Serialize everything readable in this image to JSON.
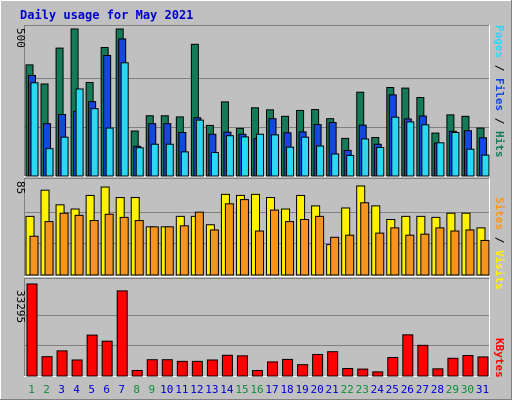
{
  "colors": {
    "hits": "#157b57",
    "files": "#1447dd",
    "pages": "#2ad8f4",
    "visits": "#fff200",
    "sites": "#f7941d",
    "kbytes": "#ff0000",
    "title": "#0000cc",
    "weekend_label": "#0b8f3a",
    "weekday_label": "#0000cc"
  },
  "chart_data": [
    {
      "type": "bar",
      "title": "Daily usage for May 2021",
      "ylabel": "Pages / Files / Hits",
      "ymax_label": "500",
      "categories": [
        "1",
        "2",
        "3",
        "4",
        "5",
        "6",
        "7",
        "8",
        "9",
        "10",
        "11",
        "12",
        "13",
        "14",
        "15",
        "16",
        "17",
        "18",
        "19",
        "20",
        "21",
        "22",
        "23",
        "24",
        "25",
        "26",
        "27",
        "28",
        "29",
        "30",
        "31"
      ],
      "weekend_days": [
        "1",
        "2",
        "8",
        "9",
        "15",
        "16",
        "22",
        "23",
        "29",
        "30"
      ],
      "ylim": [
        0,
        500
      ],
      "series": [
        {
          "name": "Hits",
          "values": [
            378,
            313,
            435,
            500,
            318,
            437,
            500,
            153,
            205,
            205,
            201,
            448,
            172,
            252,
            162,
            232,
            225,
            203,
            223,
            226,
            195,
            128,
            285,
            131,
            301,
            299,
            267,
            146,
            208,
            203,
            163
          ]
        },
        {
          "name": "Files",
          "values": [
            342,
            178,
            209,
            220,
            253,
            410,
            466,
            101,
            178,
            178,
            148,
            198,
            142,
            149,
            142,
            127,
            195,
            147,
            150,
            175,
            182,
            87,
            173,
            108,
            276,
            194,
            204,
            112,
            152,
            154,
            130
          ]
        },
        {
          "name": "Pages",
          "values": [
            317,
            93,
            132,
            296,
            229,
            163,
            385,
            96,
            108,
            108,
            82,
            190,
            80,
            137,
            133,
            142,
            140,
            98,
            132,
            102,
            75,
            70,
            126,
            97,
            200,
            184,
            174,
            113,
            148,
            91,
            71
          ]
        }
      ]
    },
    {
      "type": "bar",
      "ylabel": "Sites / Visits",
      "ymax_label": "85",
      "ylim": [
        0,
        85
      ],
      "series": [
        {
          "name": "Visits",
          "values": [
            56,
            81,
            67,
            63,
            76,
            84,
            74,
            74,
            46,
            46,
            56,
            56,
            48,
            77,
            76,
            77,
            74,
            63,
            76,
            66,
            29,
            64,
            85,
            66,
            53,
            56,
            56,
            55,
            59,
            59,
            45
          ]
        },
        {
          "name": "Sites",
          "values": [
            37,
            51,
            59,
            57,
            52,
            58,
            55,
            52,
            46,
            46,
            47,
            60,
            43,
            68,
            72,
            42,
            62,
            51,
            53,
            56,
            36,
            38,
            69,
            40,
            45,
            38,
            39,
            45,
            42,
            43,
            33
          ]
        }
      ]
    },
    {
      "type": "bar",
      "ylabel": "KBytes",
      "ymax_label": "33295",
      "ylim": [
        0,
        33295
      ],
      "series": [
        {
          "name": "KBytes",
          "values": [
            33295,
            7000,
            9100,
            5800,
            14800,
            12600,
            30800,
            2000,
            5900,
            5900,
            5300,
            5300,
            5800,
            7500,
            7300,
            2000,
            5100,
            6000,
            4100,
            7800,
            8800,
            2700,
            2500,
            1500,
            6700,
            14900,
            11100,
            2600,
            6400,
            7400,
            6900
          ]
        }
      ]
    }
  ]
}
